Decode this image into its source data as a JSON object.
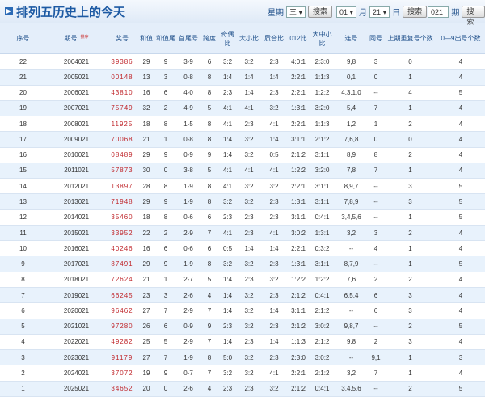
{
  "header": {
    "title": "排列五历史上的今天",
    "weekday_label": "星期",
    "weekday": "三",
    "month": "01",
    "month_unit": "月",
    "day": "21",
    "day_unit": "日",
    "issue": "021",
    "issue_unit": "期",
    "search": "搜索"
  },
  "table": {
    "columns": [
      "序号",
      "期号",
      "奖号",
      "和值",
      "和值尾",
      "首尾号",
      "跨度",
      "奇偶比",
      "大小比",
      "质合比",
      "012比",
      "大中小比",
      "连号",
      "同号",
      "上期重复号个数",
      "0—9出号个数"
    ],
    "sort_label": "排序",
    "rows": [
      [
        "22",
        "2004021",
        "39386",
        "29",
        "9",
        "3-9",
        "6",
        "3:2",
        "3:2",
        "2:3",
        "4:0:1",
        "2:3:0",
        "9,8",
        "3",
        "0",
        "4"
      ],
      [
        "21",
        "2005021",
        "00148",
        "13",
        "3",
        "0-8",
        "8",
        "1:4",
        "1:4",
        "1:4",
        "2:2:1",
        "1:1:3",
        "0,1",
        "0",
        "1",
        "4"
      ],
      [
        "20",
        "2006021",
        "43810",
        "16",
        "6",
        "4-0",
        "8",
        "2:3",
        "1:4",
        "2:3",
        "2:2:1",
        "1:2:2",
        "4,3,1,0",
        "--",
        "4",
        "5"
      ],
      [
        "19",
        "2007021",
        "75749",
        "32",
        "2",
        "4-9",
        "5",
        "4:1",
        "4:1",
        "3:2",
        "1:3:1",
        "3:2:0",
        "5,4",
        "7",
        "1",
        "4"
      ],
      [
        "18",
        "2008021",
        "11925",
        "18",
        "8",
        "1-5",
        "8",
        "4:1",
        "2:3",
        "4:1",
        "2:2:1",
        "1:1:3",
        "1,2",
        "1",
        "2",
        "4"
      ],
      [
        "17",
        "2009021",
        "70068",
        "21",
        "1",
        "0-8",
        "8",
        "1:4",
        "3:2",
        "1:4",
        "3:1:1",
        "2:1:2",
        "7,6,8",
        "0",
        "0",
        "4"
      ],
      [
        "16",
        "2010021",
        "08489",
        "29",
        "9",
        "0-9",
        "9",
        "1:4",
        "3:2",
        "0:5",
        "2:1:2",
        "3:1:1",
        "8,9",
        "8",
        "2",
        "4"
      ],
      [
        "15",
        "2011021",
        "57873",
        "30",
        "0",
        "3-8",
        "5",
        "4:1",
        "4:1",
        "4:1",
        "1:2:2",
        "3:2:0",
        "7,8",
        "7",
        "1",
        "4"
      ],
      [
        "14",
        "2012021",
        "13897",
        "28",
        "8",
        "1-9",
        "8",
        "4:1",
        "3:2",
        "3:2",
        "2:2:1",
        "3:1:1",
        "8,9,7",
        "--",
        "3",
        "5"
      ],
      [
        "13",
        "2013021",
        "71948",
        "29",
        "9",
        "1-9",
        "8",
        "3:2",
        "3:2",
        "2:3",
        "1:3:1",
        "3:1:1",
        "7,8,9",
        "--",
        "3",
        "5"
      ],
      [
        "12",
        "2014021",
        "35460",
        "18",
        "8",
        "0-6",
        "6",
        "2:3",
        "2:3",
        "2:3",
        "3:1:1",
        "0:4:1",
        "3,4,5,6",
        "--",
        "1",
        "5"
      ],
      [
        "11",
        "2015021",
        "33952",
        "22",
        "2",
        "2-9",
        "7",
        "4:1",
        "2:3",
        "4:1",
        "3:0:2",
        "1:3:1",
        "3,2",
        "3",
        "2",
        "4"
      ],
      [
        "10",
        "2016021",
        "40246",
        "16",
        "6",
        "0-6",
        "6",
        "0:5",
        "1:4",
        "1:4",
        "2:2:1",
        "0:3:2",
        "--",
        "4",
        "1",
        "4"
      ],
      [
        "9",
        "2017021",
        "87491",
        "29",
        "9",
        "1-9",
        "8",
        "3:2",
        "3:2",
        "2:3",
        "1:3:1",
        "3:1:1",
        "8,7,9",
        "--",
        "1",
        "5"
      ],
      [
        "8",
        "2018021",
        "72624",
        "21",
        "1",
        "2-7",
        "5",
        "1:4",
        "2:3",
        "3:2",
        "1:2:2",
        "1:2:2",
        "7,6",
        "2",
        "2",
        "4"
      ],
      [
        "7",
        "2019021",
        "66245",
        "23",
        "3",
        "2-6",
        "4",
        "1:4",
        "3:2",
        "2:3",
        "2:1:2",
        "0:4:1",
        "6,5,4",
        "6",
        "3",
        "4"
      ],
      [
        "6",
        "2020021",
        "96462",
        "27",
        "7",
        "2-9",
        "7",
        "1:4",
        "3:2",
        "1:4",
        "3:1:1",
        "2:1:2",
        "--",
        "6",
        "3",
        "4"
      ],
      [
        "5",
        "2021021",
        "97280",
        "26",
        "6",
        "0-9",
        "9",
        "2:3",
        "3:2",
        "2:3",
        "2:1:2",
        "3:0:2",
        "9,8,7",
        "--",
        "2",
        "5"
      ],
      [
        "4",
        "2022021",
        "49282",
        "25",
        "5",
        "2-9",
        "7",
        "1:4",
        "2:3",
        "1:4",
        "1:1:3",
        "2:1:2",
        "9,8",
        "2",
        "3",
        "4"
      ],
      [
        "3",
        "2023021",
        "91179",
        "27",
        "7",
        "1-9",
        "8",
        "5:0",
        "3:2",
        "2:3",
        "2:3:0",
        "3:0:2",
        "--",
        "9,1",
        "1",
        "3"
      ],
      [
        "2",
        "2024021",
        "37072",
        "19",
        "9",
        "0-7",
        "7",
        "3:2",
        "3:2",
        "4:1",
        "2:2:1",
        "2:1:2",
        "3,2",
        "7",
        "1",
        "4"
      ],
      [
        "1",
        "2025021",
        "34652",
        "20",
        "0",
        "2-6",
        "4",
        "2:3",
        "2:3",
        "3:2",
        "2:1:2",
        "0:4:1",
        "3,4,5,6",
        "--",
        "2",
        "5"
      ]
    ]
  }
}
